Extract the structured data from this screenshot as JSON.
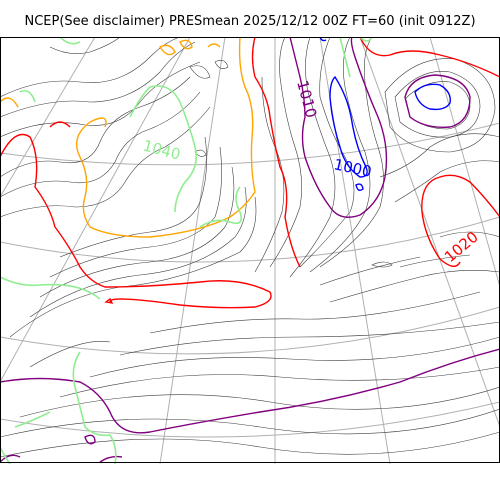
{
  "title": "NCEP(See disclaimer) PRESmean 2025/12/12 00Z FT=60 (init 0912Z)",
  "colors": {
    "background": "#ffffff",
    "frame": "#000000",
    "grid": "#b0b0b0",
    "isobar_thin": "#3c3c3c",
    "isobar_1000": "#0000ff",
    "isobar_1010": "#800080",
    "isobar_1020": "#ff0000",
    "isobar_1030": "#ffa500",
    "isobar_1040": "#90ee90"
  },
  "contour_labels": [
    {
      "id": "label-1010",
      "text": "1010",
      "color": "#800080"
    },
    {
      "id": "label-1000",
      "text": "1000",
      "color": "#0000ff"
    },
    {
      "id": "label-1020",
      "text": "1020",
      "color": "#ff0000"
    },
    {
      "id": "label-1040",
      "text": "1040",
      "color": "#90ee90"
    }
  ]
}
